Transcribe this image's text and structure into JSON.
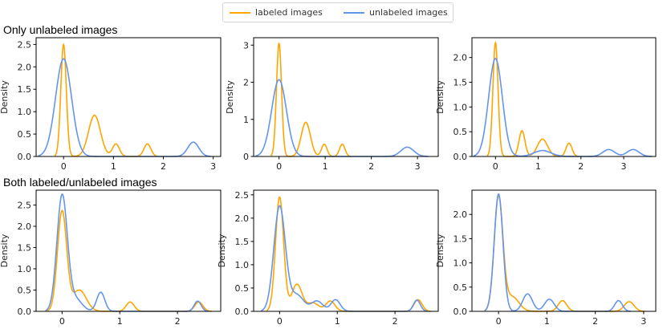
{
  "legend": {
    "items": [
      {
        "label": "labeled images",
        "color": "#FFA500"
      },
      {
        "label": "unlabeled images",
        "color": "#6495ED"
      }
    ]
  },
  "rows": [
    {
      "label": "Only unlabeled images"
    },
    {
      "label": "Both labeled/unlabeled images"
    }
  ],
  "chart_data": [
    {
      "type": "line",
      "ylabel": "Density",
      "xlim": [
        -0.55,
        3.15
      ],
      "ylim": [
        0,
        2.65
      ],
      "xticks": [
        0,
        1,
        2,
        3
      ],
      "yticks": [
        0.0,
        0.5,
        1.0,
        1.5,
        2.0,
        2.5
      ],
      "series": [
        {
          "name": "labeled images",
          "color": "#FFA500",
          "peaks": [
            [
              0,
              2.5,
              0.055
            ],
            [
              0.62,
              0.92,
              0.12
            ],
            [
              1.05,
              0.28,
              0.07
            ],
            [
              1.68,
              0.28,
              0.07
            ]
          ]
        },
        {
          "name": "unlabeled images",
          "color": "#6495ED",
          "peaks": [
            [
              0,
              2.18,
              0.16
            ],
            [
              2.6,
              0.32,
              0.11
            ]
          ]
        }
      ]
    },
    {
      "type": "line",
      "ylabel": "Density",
      "xlim": [
        -0.55,
        3.45
      ],
      "ylim": [
        0,
        3.2
      ],
      "xticks": [
        0,
        1,
        2,
        3
      ],
      "yticks": [
        0,
        1,
        2,
        3
      ],
      "series": [
        {
          "name": "labeled images",
          "color": "#FFA500",
          "peaks": [
            [
              0,
              3.05,
              0.055
            ],
            [
              0.58,
              0.92,
              0.1
            ],
            [
              0.98,
              0.33,
              0.06
            ],
            [
              1.37,
              0.33,
              0.06
            ]
          ]
        },
        {
          "name": "unlabeled images",
          "color": "#6495ED",
          "peaks": [
            [
              0,
              2.07,
              0.16
            ],
            [
              2.78,
              0.25,
              0.14
            ]
          ]
        }
      ]
    },
    {
      "type": "line",
      "ylabel": "Density",
      "xlim": [
        -0.55,
        3.75
      ],
      "ylim": [
        0,
        2.4
      ],
      "xticks": [
        0,
        1,
        2,
        3
      ],
      "yticks": [
        0.0,
        0.5,
        1.0,
        1.5,
        2.0
      ],
      "series": [
        {
          "name": "labeled images",
          "color": "#FFA500",
          "peaks": [
            [
              0,
              2.3,
              0.06
            ],
            [
              0.62,
              0.52,
              0.07
            ],
            [
              1.1,
              0.35,
              0.12
            ],
            [
              1.72,
              0.27,
              0.07
            ]
          ]
        },
        {
          "name": "unlabeled images",
          "color": "#6495ED",
          "peaks": [
            [
              0,
              1.98,
              0.16
            ],
            [
              1.1,
              0.12,
              0.2
            ],
            [
              2.65,
              0.14,
              0.14
            ],
            [
              3.22,
              0.14,
              0.14
            ]
          ]
        }
      ]
    },
    {
      "type": "line",
      "ylabel": "Density",
      "xlim": [
        -0.45,
        2.75
      ],
      "ylim": [
        0,
        2.85
      ],
      "xticks": [
        0,
        1,
        2
      ],
      "yticks": [
        0.0,
        0.5,
        1.0,
        1.5,
        2.0,
        2.5
      ],
      "series": [
        {
          "name": "labeled images",
          "color": "#FFA500",
          "peaks": [
            [
              0,
              2.35,
              0.08
            ],
            [
              0.3,
              0.5,
              0.12
            ],
            [
              1.18,
              0.22,
              0.07
            ],
            [
              2.37,
              0.22,
              0.07
            ]
          ]
        },
        {
          "name": "unlabeled images",
          "color": "#6495ED",
          "peaks": [
            [
              0,
              2.7,
              0.09
            ],
            [
              0.22,
              0.3,
              0.12
            ],
            [
              0.67,
              0.45,
              0.07
            ],
            [
              2.35,
              0.24,
              0.06
            ]
          ]
        }
      ]
    },
    {
      "type": "line",
      "ylabel": "Density",
      "xlim": [
        -0.45,
        2.75
      ],
      "ylim": [
        0,
        2.6
      ],
      "xticks": [
        0,
        1,
        2
      ],
      "yticks": [
        0.0,
        0.5,
        1.0,
        1.5,
        2.0,
        2.5
      ],
      "series": [
        {
          "name": "labeled images",
          "color": "#FFA500",
          "peaks": [
            [
              0,
              2.45,
              0.07
            ],
            [
              0.3,
              0.58,
              0.09
            ],
            [
              0.58,
              0.18,
              0.1
            ],
            [
              0.88,
              0.22,
              0.08
            ],
            [
              2.4,
              0.25,
              0.07
            ]
          ]
        },
        {
          "name": "unlabeled images",
          "color": "#6495ED",
          "peaks": [
            [
              0,
              2.25,
              0.1
            ],
            [
              0.3,
              0.35,
              0.12
            ],
            [
              0.65,
              0.22,
              0.1
            ],
            [
              0.97,
              0.25,
              0.08
            ],
            [
              2.38,
              0.24,
              0.06
            ]
          ]
        }
      ]
    },
    {
      "type": "line",
      "ylabel": "Density",
      "xlim": [
        -0.55,
        3.25
      ],
      "ylim": [
        0,
        2.5
      ],
      "xticks": [
        0,
        1,
        2,
        3
      ],
      "yticks": [
        0.0,
        0.5,
        1.0,
        1.5,
        2.0
      ],
      "series": [
        {
          "name": "labeled images",
          "color": "#FFA500",
          "peaks": [
            [
              0,
              2.35,
              0.09
            ],
            [
              0.28,
              0.3,
              0.14
            ],
            [
              1.32,
              0.22,
              0.09
            ],
            [
              2.7,
              0.2,
              0.1
            ]
          ]
        },
        {
          "name": "unlabeled images",
          "color": "#6495ED",
          "peaks": [
            [
              0,
              2.42,
              0.09
            ],
            [
              0.6,
              0.36,
              0.1
            ],
            [
              1.05,
              0.25,
              0.1
            ],
            [
              2.48,
              0.22,
              0.08
            ]
          ]
        }
      ]
    }
  ]
}
